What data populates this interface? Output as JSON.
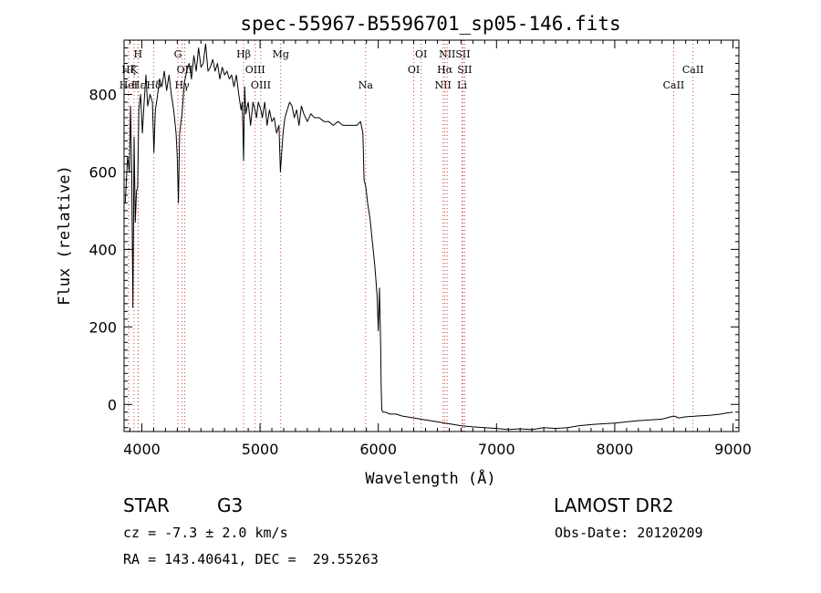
{
  "chart_data": {
    "type": "line",
    "title": "spec-55967-B5596701_sp05-146.fits",
    "xlabel": "Wavelength (Å)",
    "ylabel": "Flux (relative)",
    "xlim": [
      3850,
      9050
    ],
    "ylim": [
      -70,
      940
    ],
    "x_ticks": [
      4000,
      5000,
      6000,
      7000,
      8000,
      9000
    ],
    "y_ticks": [
      0,
      200,
      400,
      600,
      800
    ],
    "grid": false,
    "series": [
      {
        "x": [
          3860,
          3880,
          3895,
          3905,
          3915,
          3925,
          3935,
          3945,
          3955,
          3965,
          3975,
          3990,
          4005,
          4020,
          4035,
          4050,
          4070,
          4090,
          4102,
          4115,
          4130,
          4150,
          4170,
          4190,
          4210,
          4230,
          4250,
          4270,
          4290,
          4300,
          4310,
          4320,
          4340,
          4360,
          4380,
          4400,
          4420,
          4440,
          4460,
          4480,
          4500,
          4520,
          4540,
          4560,
          4580,
          4600,
          4620,
          4640,
          4660,
          4680,
          4700,
          4720,
          4740,
          4760,
          4780,
          4800,
          4820,
          4840,
          4850,
          4861,
          4870,
          4880,
          4900,
          4920,
          4940,
          4957,
          4970,
          4985,
          5007,
          5020,
          5040,
          5060,
          5080,
          5100,
          5120,
          5140,
          5160,
          5172,
          5183,
          5195,
          5210,
          5230,
          5250,
          5270,
          5290,
          5310,
          5330,
          5350,
          5370,
          5400,
          5430,
          5460,
          5500,
          5540,
          5580,
          5620,
          5660,
          5700,
          5740,
          5780,
          5820,
          5850,
          5870,
          5880,
          5895,
          5910,
          5930,
          5950,
          5970,
          5980,
          5990,
          6000,
          6010,
          6020,
          6025,
          6030,
          6040,
          6060,
          6100,
          6150,
          6200,
          6300,
          6400,
          6500,
          6600,
          6700,
          6800,
          6900,
          7000,
          7100,
          7200,
          7300,
          7400,
          7500,
          7600,
          7700,
          7800,
          7900,
          8000,
          8100,
          8200,
          8300,
          8400,
          8500,
          8542,
          8600,
          8700,
          8800,
          8900,
          8950,
          9000
        ],
        "y": [
          520,
          640,
          600,
          770,
          600,
          250,
          690,
          470,
          550,
          560,
          760,
          800,
          700,
          780,
          850,
          770,
          800,
          780,
          650,
          760,
          790,
          840,
          820,
          860,
          810,
          850,
          800,
          760,
          700,
          640,
          520,
          700,
          750,
          830,
          860,
          880,
          840,
          900,
          860,
          920,
          870,
          880,
          930,
          860,
          870,
          890,
          860,
          880,
          840,
          870,
          850,
          860,
          840,
          850,
          820,
          850,
          800,
          760,
          780,
          630,
          820,
          750,
          780,
          720,
          780,
          760,
          740,
          780,
          760,
          740,
          780,
          720,
          760,
          730,
          740,
          700,
          720,
          600,
          650,
          700,
          740,
          760,
          780,
          770,
          740,
          760,
          720,
          770,
          750,
          730,
          750,
          740,
          740,
          730,
          730,
          720,
          730,
          720,
          720,
          720,
          720,
          730,
          700,
          580,
          560,
          520,
          480,
          420,
          360,
          320,
          280,
          190,
          300,
          150,
          40,
          -15,
          -20,
          -20,
          -25,
          -25,
          -30,
          -35,
          -40,
          -45,
          -50,
          -55,
          -58,
          -60,
          -62,
          -65,
          -63,
          -65,
          -60,
          -62,
          -60,
          -55,
          -52,
          -50,
          -48,
          -45,
          -42,
          -40,
          -38,
          -30,
          -35,
          -32,
          -30,
          -28,
          -25,
          -22,
          -20
        ]
      }
    ],
    "line_markers": [
      {
        "label": "HeI",
        "x": 3888,
        "row": 3
      },
      {
        "label": "Hε",
        "x": 3970,
        "row": 3
      },
      {
        "label": "Hδ",
        "x": 4102,
        "row": 3
      },
      {
        "label": "H",
        "x": 3968,
        "row": 1
      },
      {
        "label": "K",
        "x": 3934,
        "row": 2
      },
      {
        "label": "Hζ",
        "x": 3889,
        "row": 2
      },
      {
        "label": "G",
        "x": 4305,
        "row": 1
      },
      {
        "label": "OII",
        "x": 4363,
        "row": 2
      },
      {
        "label": "Hγ",
        "x": 4341,
        "row": 3
      },
      {
        "label": "Hβ",
        "x": 4861,
        "row": 1
      },
      {
        "label": "OIII",
        "x": 4959,
        "row": 2
      },
      {
        "label": "OIII",
        "x": 5007,
        "row": 3
      },
      {
        "label": "Mg",
        "x": 5175,
        "row": 1
      },
      {
        "label": "Na",
        "x": 5893,
        "row": 3
      },
      {
        "label": "OI",
        "x": 6300,
        "row": 2
      },
      {
        "label": "OI",
        "x": 6363,
        "row": 1
      },
      {
        "label": "NII",
        "x": 6548,
        "row": 3
      },
      {
        "label": "NII",
        "x": 6583,
        "row": 1
      },
      {
        "label": "Hα",
        "x": 6563,
        "row": 2
      },
      {
        "label": "SII",
        "x": 6716,
        "row": 1
      },
      {
        "label": "SII",
        "x": 6731,
        "row": 2
      },
      {
        "label": "Li",
        "x": 6708,
        "row": 3
      },
      {
        "label": "CaII",
        "x": 8498,
        "row": 3
      },
      {
        "label": "CaII",
        "x": 8662,
        "row": 2
      }
    ],
    "colors": {
      "line": "#000000",
      "marker": "#d04040"
    }
  },
  "info": {
    "object_type": "STAR",
    "subclass": "G3",
    "survey": "LAMOST DR2",
    "redshift_line": "cz = -7.3 ± 2.0 km/s",
    "obs_date": "Obs-Date: 20120209",
    "coords": "RA = 143.40641, DEC =  29.55263"
  }
}
